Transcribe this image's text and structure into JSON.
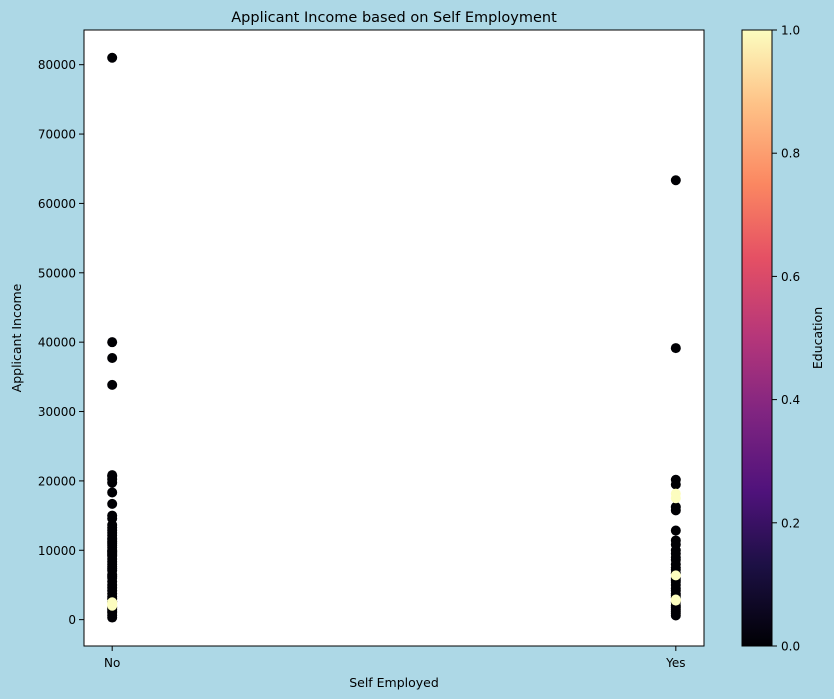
{
  "figure": {
    "background": "#add8e6"
  },
  "chart_data": {
    "type": "scatter",
    "title": "Applicant Income based on Self Employment",
    "xlabel": "Self Employed",
    "ylabel": "Applicant Income",
    "categories": [
      "No",
      "Yes"
    ],
    "xlim": [
      -0.05,
      1.05
    ],
    "ylim": [
      -3800,
      85000
    ],
    "y_ticks": [
      0,
      10000,
      20000,
      30000,
      40000,
      50000,
      60000,
      70000,
      80000
    ],
    "grid": false,
    "colormap": "magma",
    "colorbar": {
      "label": "Education",
      "range": [
        0,
        1
      ],
      "ticks": [
        "0.0",
        "0.2",
        "0.4",
        "0.6",
        "0.8",
        "1.0"
      ]
    },
    "series": [
      {
        "points": [
          [
            0,
            81000,
            0
          ],
          [
            0,
            39999,
            0
          ],
          [
            0,
            37719,
            0
          ],
          [
            0,
            33846,
            0
          ],
          [
            0,
            20833,
            0
          ],
          [
            0,
            20667,
            0
          ],
          [
            0,
            20233,
            0
          ],
          [
            0,
            19730,
            0
          ],
          [
            0,
            18333,
            0
          ],
          [
            0,
            16692,
            0
          ],
          [
            0,
            15000,
            0
          ],
          [
            0,
            14583,
            0
          ],
          [
            0,
            13650,
            0
          ],
          [
            0,
            13262,
            0
          ],
          [
            0,
            12876,
            0
          ],
          [
            0,
            12500,
            0
          ],
          [
            0,
            12173,
            0
          ],
          [
            0,
            11757,
            0
          ],
          [
            0,
            11500,
            0
          ],
          [
            0,
            11250,
            0
          ],
          [
            0,
            11000,
            0
          ],
          [
            0,
            10750,
            0
          ],
          [
            0,
            10408,
            0
          ],
          [
            0,
            10000,
            0
          ],
          [
            0,
            9833,
            0
          ],
          [
            0,
            9703,
            0
          ],
          [
            0,
            9504,
            0
          ],
          [
            0,
            9323,
            0
          ],
          [
            0,
            9166,
            0
          ],
          [
            0,
            8750,
            0
          ],
          [
            0,
            8333,
            0
          ],
          [
            0,
            8000,
            0
          ],
          [
            0,
            7660,
            0
          ],
          [
            0,
            7333,
            0
          ],
          [
            0,
            7085,
            0
          ],
          [
            0,
            6500,
            0
          ],
          [
            0,
            6250,
            0
          ],
          [
            0,
            6000,
            0
          ],
          [
            0,
            5500,
            0
          ],
          [
            0,
            5000,
            0
          ],
          [
            0,
            4583,
            0
          ],
          [
            0,
            4166,
            0
          ],
          [
            0,
            3750,
            0
          ],
          [
            0,
            3333,
            0
          ],
          [
            0,
            3000,
            0
          ],
          [
            0,
            2600,
            0
          ],
          [
            0,
            2500,
            1
          ],
          [
            0,
            2333,
            1
          ],
          [
            0,
            2166,
            1
          ],
          [
            0,
            2000,
            1
          ],
          [
            0,
            1800,
            0
          ],
          [
            0,
            1500,
            0
          ],
          [
            0,
            1200,
            0
          ],
          [
            0,
            1000,
            0
          ],
          [
            0,
            645,
            0
          ],
          [
            0,
            300,
            0
          ],
          [
            1,
            63337,
            0
          ],
          [
            1,
            39147,
            0
          ],
          [
            1,
            20166,
            0
          ],
          [
            1,
            19484,
            0
          ],
          [
            1,
            18165,
            1
          ],
          [
            1,
            17500,
            1
          ],
          [
            1,
            16250,
            0
          ],
          [
            1,
            15759,
            0
          ],
          [
            1,
            12841,
            0
          ],
          [
            1,
            11417,
            0
          ],
          [
            1,
            10833,
            0
          ],
          [
            1,
            10000,
            0
          ],
          [
            1,
            9538,
            0
          ],
          [
            1,
            9000,
            0
          ],
          [
            1,
            8624,
            0
          ],
          [
            1,
            8000,
            0
          ],
          [
            1,
            7500,
            0
          ],
          [
            1,
            7200,
            0
          ],
          [
            1,
            6700,
            0
          ],
          [
            1,
            6383,
            1
          ],
          [
            1,
            6000,
            0
          ],
          [
            1,
            5703,
            0
          ],
          [
            1,
            5417,
            0
          ],
          [
            1,
            5000,
            0
          ],
          [
            1,
            4500,
            0
          ],
          [
            1,
            4166,
            0
          ],
          [
            1,
            3750,
            0
          ],
          [
            1,
            3500,
            0
          ],
          [
            1,
            3200,
            0
          ],
          [
            1,
            2900,
            1
          ],
          [
            1,
            2750,
            1
          ],
          [
            1,
            2500,
            0
          ],
          [
            1,
            2000,
            0
          ],
          [
            1,
            1800,
            0
          ],
          [
            1,
            1500,
            0
          ],
          [
            1,
            1200,
            0
          ],
          [
            1,
            900,
            0
          ],
          [
            1,
            600,
            0
          ]
        ]
      }
    ]
  }
}
